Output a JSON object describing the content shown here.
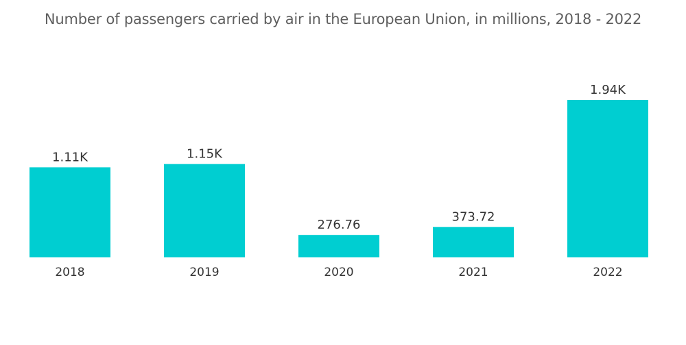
{
  "chart_data": {
    "type": "bar",
    "title": "Number of passengers carried by air in the European Union, in millions, 2018 - 2022",
    "xlabel": "",
    "ylabel": "",
    "categories": [
      "2018",
      "2019",
      "2020",
      "2021",
      "2022"
    ],
    "values": [
      1110,
      1150,
      276.76,
      373.72,
      1940
    ],
    "data_labels": [
      "1.11K",
      "1.15K",
      "276.76",
      "373.72",
      "1.94K"
    ],
    "ylim": [
      0,
      1940
    ],
    "grid": false,
    "legend": "none",
    "bar_color": "#00CED1"
  }
}
